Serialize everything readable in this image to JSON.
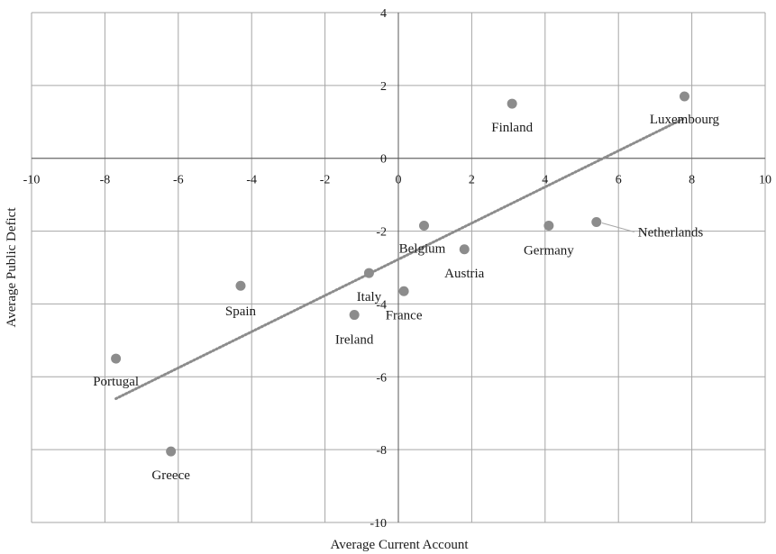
{
  "chart_data": {
    "type": "scatter",
    "xlabel": "Average Current Account",
    "ylabel": "Average Public Defict",
    "xlim": [
      -10,
      10
    ],
    "ylim": [
      -10,
      4
    ],
    "x_ticks": [
      -10,
      -8,
      -6,
      -4,
      -2,
      0,
      2,
      4,
      6,
      8,
      10
    ],
    "y_ticks": [
      4,
      2,
      0,
      -2,
      -4,
      -6,
      -8,
      -10
    ],
    "grid": true,
    "colors": {
      "point": "#8c8c8c",
      "trend": "#8c8c8c",
      "grid": "#a6a6a6",
      "text": "#1a1a1a"
    },
    "points": [
      {
        "label": "Luxembourg",
        "x": 7.8,
        "y": 1.7
      },
      {
        "label": "Finland",
        "x": 3.1,
        "y": 1.5
      },
      {
        "label": "Netherlands",
        "x": 5.4,
        "y": -1.75
      },
      {
        "label": "Germany",
        "x": 4.1,
        "y": -1.85
      },
      {
        "label": "Belgium",
        "x": 0.7,
        "y": -1.85
      },
      {
        "label": "Austria",
        "x": 1.8,
        "y": -2.5
      },
      {
        "label": "Italy",
        "x": -0.8,
        "y": -3.15
      },
      {
        "label": "France",
        "x": 0.15,
        "y": -3.65
      },
      {
        "label": "Ireland",
        "x": -1.2,
        "y": -4.3
      },
      {
        "label": "Spain",
        "x": -4.3,
        "y": -3.5
      },
      {
        "label": "Portugal",
        "x": -7.7,
        "y": -5.5
      },
      {
        "label": "Greece",
        "x": -6.2,
        "y": -8.05
      }
    ],
    "trendline": {
      "style": "dotted",
      "x": [
        -7.7,
        7.8
      ],
      "y": [
        -6.6,
        1.1
      ]
    }
  }
}
